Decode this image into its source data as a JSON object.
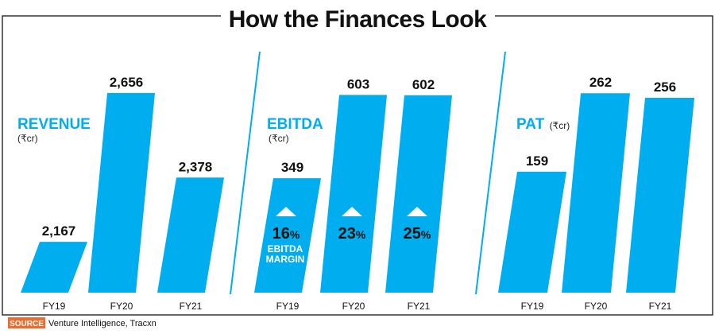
{
  "title": "How the Finances Look",
  "colors": {
    "bar": "#00aeef",
    "heading": "#00aeef",
    "frame": "#333333",
    "source_tag": "#ec6b2d"
  },
  "source": {
    "tag": "SOURCE",
    "text": "Venture Intelligence, Tracxn"
  },
  "chart_data": [
    {
      "type": "bar",
      "title": "REVENUE",
      "unit": "(₹cr)",
      "categories": [
        "FY19",
        "FY20",
        "FY21"
      ],
      "values": [
        2167,
        2656,
        2378
      ],
      "value_labels": [
        "2,167",
        "2,656",
        "2,378"
      ],
      "ylim": [
        2000,
        2700
      ]
    },
    {
      "type": "bar",
      "title": "EBITDA",
      "unit": "(₹cr)",
      "categories": [
        "FY19",
        "FY20",
        "FY21"
      ],
      "values": [
        349,
        603,
        602
      ],
      "value_labels": [
        "349",
        "603",
        "602"
      ],
      "ylim": [
        0,
        650
      ],
      "annotations": {
        "caption": [
          "EBITDA",
          "MARGIN"
        ],
        "margins": [
          {
            "value": "16",
            "suffix": "%"
          },
          {
            "value": "23",
            "suffix": "%"
          },
          {
            "value": "25",
            "suffix": "%"
          }
        ]
      }
    },
    {
      "type": "bar",
      "title": "PAT",
      "unit": "(₹cr)",
      "categories": [
        "FY19",
        "FY20",
        "FY21"
      ],
      "values": [
        159,
        262,
        256
      ],
      "value_labels": [
        "159",
        "262",
        "256"
      ],
      "ylim": [
        0,
        280
      ]
    }
  ]
}
